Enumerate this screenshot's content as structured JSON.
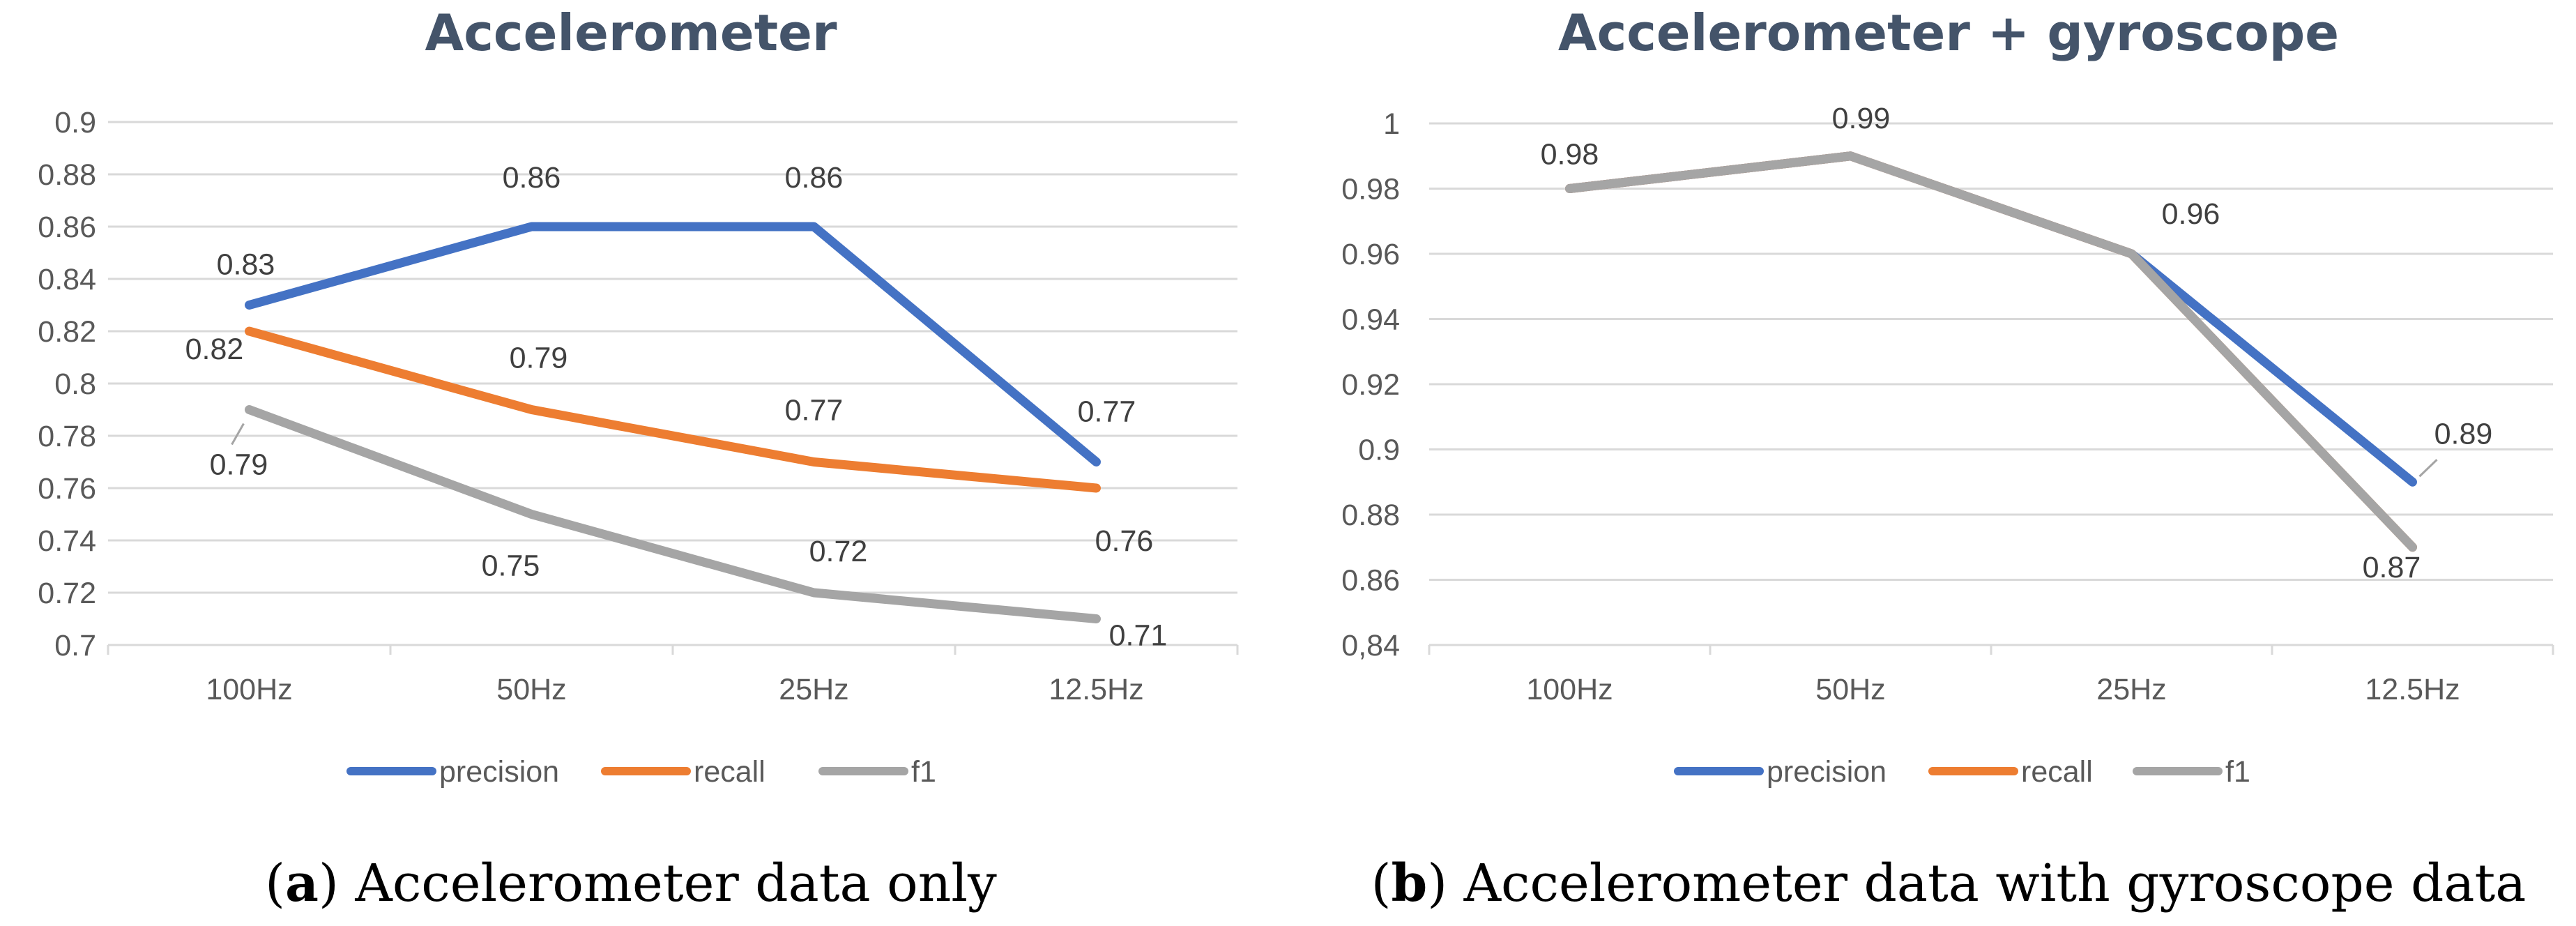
{
  "colors": {
    "precision": "#4472c4",
    "recall": "#ed7d31",
    "f1": "#a5a5a5",
    "title": "#44546a",
    "axis_text": "#595959",
    "label_text": "#404040",
    "grid": "#d9d9d9"
  },
  "chart_data": [
    {
      "type": "line",
      "title": "Accelerometer",
      "caption_letter": "a",
      "caption_text": ") Accelerometer data only",
      "categories": [
        "100Hz",
        "50Hz",
        "25Hz",
        "12.5Hz"
      ],
      "xlabel": "",
      "ylabel": "",
      "ylim": [
        0.7,
        0.9
      ],
      "yticks": [
        "0.7",
        "0.72",
        "0.74",
        "0.76",
        "0.78",
        "0.8",
        "0.82",
        "0.84",
        "0.86",
        "0.88",
        "0.9"
      ],
      "grid": true,
      "legend": "bottom",
      "series": [
        {
          "name": "precision",
          "values": [
            0.83,
            0.86,
            0.86,
            0.77
          ],
          "labels": [
            "0.83",
            "0.86",
            "0.86",
            "0.77"
          ]
        },
        {
          "name": "recall",
          "values": [
            0.82,
            0.79,
            0.77,
            0.76
          ],
          "labels": [
            "0.82",
            "0.79",
            "0.77",
            "0.76"
          ]
        },
        {
          "name": "f1",
          "values": [
            0.79,
            0.75,
            0.72,
            0.71
          ],
          "labels": [
            "0.79",
            "0.75",
            "0.72",
            "0.71"
          ]
        }
      ]
    },
    {
      "type": "line",
      "title": "Accelerometer + gyroscope",
      "caption_letter": "b",
      "caption_text": ") Accelerometer data with gyroscope data",
      "categories": [
        "100Hz",
        "50Hz",
        "25Hz",
        "12.5Hz"
      ],
      "xlabel": "",
      "ylabel": "",
      "ylim": [
        0.84,
        1.0
      ],
      "yticks": [
        "0,84",
        "0.86",
        "0.88",
        "0.9",
        "0.92",
        "0.94",
        "0.96",
        "0.98",
        "1"
      ],
      "grid": true,
      "legend": "bottom",
      "series": [
        {
          "name": "precision",
          "values": [
            0.98,
            0.99,
            0.96,
            0.89
          ],
          "labels": [
            "0.98",
            "0.99",
            "0.96",
            "0.89"
          ]
        },
        {
          "name": "recall",
          "values": [
            0.98,
            0.99,
            0.96,
            0.87
          ],
          "labels": []
        },
        {
          "name": "f1",
          "values": [
            0.98,
            0.99,
            0.96,
            0.87
          ],
          "labels": [
            "",
            "",
            "",
            "0.87"
          ]
        }
      ]
    }
  ]
}
